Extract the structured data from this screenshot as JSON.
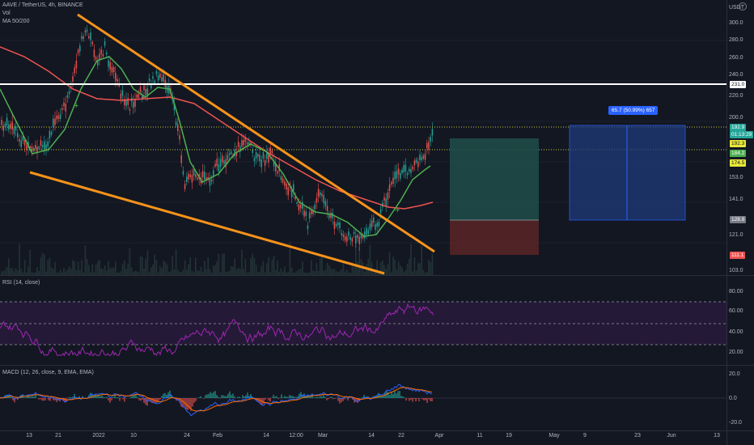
{
  "header": {
    "symbol": "AAVE / TetherUS, 4h, BINANCE",
    "indicator_vol": "Vol",
    "indicator_ma": "MA 50/200",
    "currency": "USDT"
  },
  "price_axis": {
    "ticks": [
      "300.0",
      "280.0",
      "260.0",
      "240.0",
      "220.0",
      "200.0",
      "153.0",
      "141.0",
      "121.0",
      "103.0"
    ],
    "labels": {
      "resistance": "231.0",
      "last": "192.9",
      "countdown": "01:13:29",
      "ma50": "184.2",
      "dotted": "192.3",
      "ma200": "174.5",
      "entry": "128.9",
      "stop": "111.1"
    }
  },
  "measure_tool": {
    "label": "65.7 (50.99%) 657"
  },
  "rsi": {
    "title": "RSI (14, close)",
    "ticks": [
      "80.00",
      "60.00",
      "40.00",
      "20.00"
    ]
  },
  "macd": {
    "title": "MACD (12, 26, close, 9, EMA, EMA)",
    "ticks": [
      "20.0",
      "0.0",
      "-20.0"
    ]
  },
  "time_axis": {
    "ticks": [
      "13",
      "21",
      "2022",
      "10",
      "24",
      "Feb",
      "14",
      "12:00",
      "Mar",
      "14",
      "22",
      "Apr",
      "11",
      "19",
      "May",
      "9",
      "23",
      "Jun",
      "13"
    ]
  },
  "colors": {
    "background": "#131722",
    "trendline": "#f7931a",
    "ma50": "#4caf50",
    "ma200": "#ef5350",
    "resistance": "#ffffff",
    "rsi": "#9c27b0",
    "macd": "#2962ff",
    "signal": "#ff6d00",
    "target_zone": "#1f4e4a",
    "stop_zone": "#5a2426",
    "measure_zone": "#1e3a7a"
  }
}
